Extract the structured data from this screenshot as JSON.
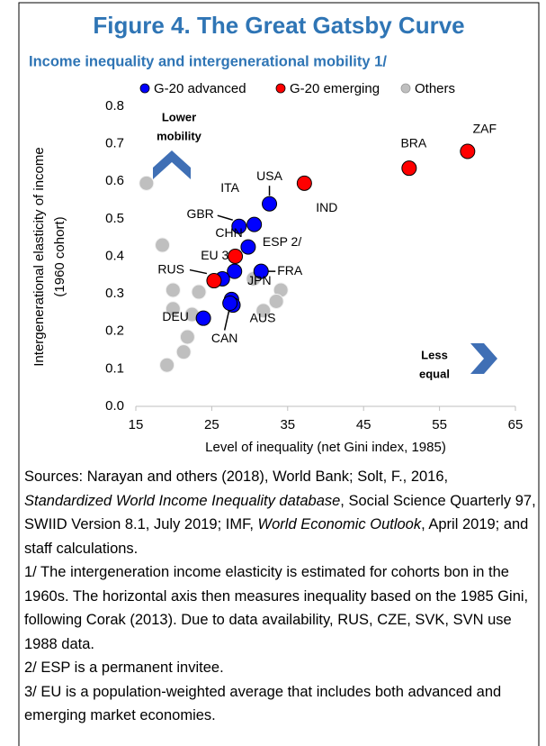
{
  "chart_data": {
    "type": "scatter",
    "title": "Figure 4. The Great Gatsby Curve",
    "subtitle": "Income inequality and intergenerational mobility 1/",
    "x_label": "Level of inequality (net Gini index, 1985)",
    "y_label": [
      "Intergenerational  elasticity of income",
      "(1960 cohort)"
    ],
    "xlim": [
      15,
      65
    ],
    "xticks": [
      15,
      25,
      35,
      45,
      55,
      65
    ],
    "ylim": [
      0,
      0.8
    ],
    "yticks": [
      {
        "value": 0,
        "label": "0.0"
      },
      0.1,
      0.2,
      0.3,
      0.4,
      0.5,
      0.6,
      0.7,
      0.8
    ],
    "series": [
      {
        "name": "Others",
        "color": "#bfbfbf",
        "x": [
          16.4,
          18.5,
          19.9,
          23.3,
          19.9,
          22.4,
          21.8,
          21.3,
          19.1,
          30.5,
          34.1,
          33.5,
          31.8
        ],
        "values": [
          0.595,
          0.43,
          0.31,
          0.305,
          0.26,
          0.245,
          0.185,
          0.145,
          0.11,
          0.34,
          0.31,
          0.28,
          0.255
        ]
      },
      {
        "name": "G-20 advanced",
        "color": "#0000ff",
        "x": [
          32.6,
          28.6,
          30.6,
          29.8,
          31.5,
          28,
          26.4,
          27.6,
          27.8,
          27.4,
          23.9
        ],
        "values": [
          0.54,
          0.48,
          0.485,
          0.425,
          0.36,
          0.36,
          0.34,
          0.285,
          0.27,
          0.275,
          0.235
        ],
        "labels": [
          "USA",
          "GBR",
          "ITA",
          "ESP 2/",
          "FRA",
          "EU 3/",
          null,
          "JPN",
          "AUS",
          "CAN",
          "DEU"
        ]
      },
      {
        "name": "G-20 emerging",
        "color": "#ff0000",
        "x": [
          58.7,
          51,
          37.2,
          28.1,
          25.3
        ],
        "values": [
          0.68,
          0.635,
          0.595,
          0.4,
          0.335
        ],
        "labels": [
          "ZAF",
          "BRA",
          "IND",
          "CHN",
          "RUS"
        ]
      }
    ],
    "legend_order": [
      1,
      2,
      0
    ],
    "annotations": [
      [
        "Lower",
        "mobility"
      ],
      [
        "Less",
        "equal"
      ]
    ]
  },
  "notes": [
    [
      "Sources:  Narayan and others (2018), World Bank; Solt, F., 2016, ",
      "Standardized World Income Inequality database",
      ", Social Science Quarterly 97, SWIID Version 8.1, July 2019; IMF, ",
      "World Economic Outlook",
      ", April 2019; and staff calculations."
    ],
    "1/ The intergeneration income elasticity is estimated for cohorts bon in the 1960s. The horizontal axis then measures inequality based on the 1985 Gini, following Corak (2013). Due to data availability, RUS, CZE, SVK, SVN use 1988 data.",
    "2/ ESP is a permanent invitee.",
    "3/ EU is a population-weighted average that includes both advanced and emerging market economies."
  ]
}
